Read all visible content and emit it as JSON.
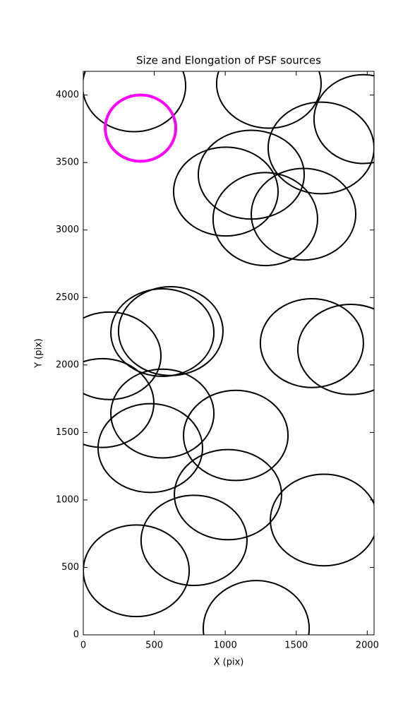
{
  "chart_data": {
    "type": "ellipse",
    "title": "Size and Elongation of PSF sources",
    "xlabel": "X (pix)",
    "ylabel": "Y (pix)",
    "xlim": [
      0,
      2048
    ],
    "ylim": [
      0,
      4176
    ],
    "xticks": [
      0,
      500,
      1000,
      1500,
      2000
    ],
    "yticks": [
      0,
      500,
      1000,
      1500,
      2000,
      2500,
      3000,
      3500,
      4000
    ],
    "series": [
      {
        "color": "#000000",
        "x": [
          358,
          1307,
          1973,
          1675,
          1183,
          1004,
          1282,
          1551,
          616,
          557,
          1610,
          1884,
          184,
          134,
          557,
          1074,
          472,
          1019,
          1695,
          780,
          373,
          1218
        ],
        "y": [
          4068,
          4084,
          3822,
          3608,
          3410,
          3285,
          3081,
          3117,
          2251,
          2240,
          2162,
          2115,
          2068,
          1718,
          1640,
          1478,
          1384,
          1039,
          851,
          700,
          475,
          47
        ],
        "width": [
          726,
          736,
          696,
          746,
          746,
          736,
          736,
          736,
          736,
          726,
          726,
          746,
          726,
          726,
          726,
          736,
          736,
          755,
          755,
          746,
          746,
          746
        ],
        "height": [
          679,
          658,
          658,
          679,
          658,
          658,
          689,
          679,
          658,
          648,
          658,
          668,
          648,
          658,
          658,
          668,
          658,
          668,
          679,
          668,
          679,
          710
        ]
      },
      {
        "color": "#ff00ff",
        "x": [
          403
        ],
        "y": [
          3755
        ],
        "width": [
          497
        ],
        "height": [
          491
        ]
      }
    ]
  }
}
